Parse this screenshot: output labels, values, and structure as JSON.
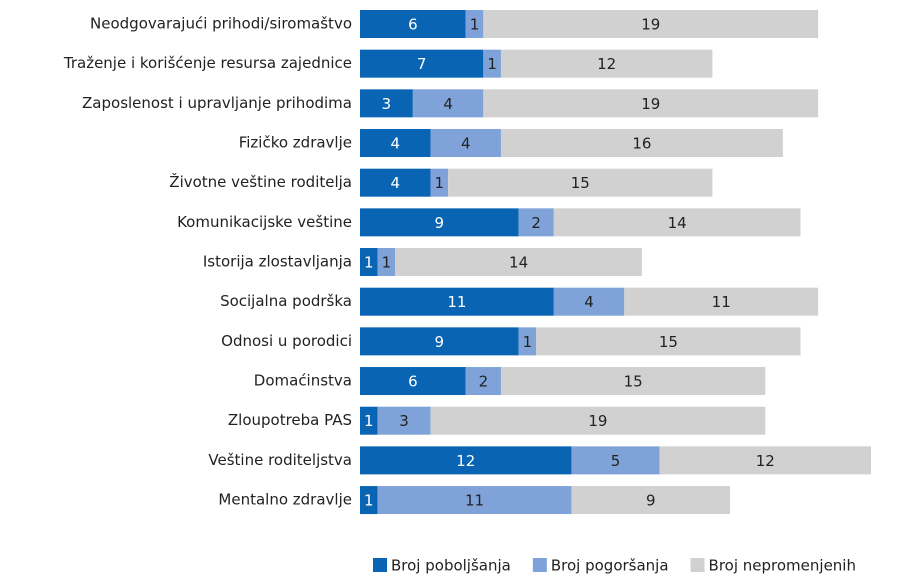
{
  "chart_data": {
    "type": "stacked_bar_horizontal",
    "categories": [
      "Neodgovarajući prihodi/siromaštvo",
      "Traženje i korišćenje resursa zajednice",
      "Zaposlenost i upravljanje prihodima",
      "Fizičko zdravlje",
      "Životne veštine roditelja",
      "Komunikacijske veštine",
      "Istorija zlostavljanja",
      "Socijalna podrška",
      "Odnosi u porodici",
      "Domaćinstva",
      "Zloupotreba PAS",
      "Veštine roditeljstva",
      "Mentalno zdravlje"
    ],
    "series": [
      {
        "name": "Broj poboljšanja",
        "color": "#0a64b4",
        "values": [
          6,
          7,
          3,
          4,
          4,
          9,
          1,
          11,
          9,
          6,
          1,
          12,
          1
        ]
      },
      {
        "name": "Broj pogoršanja",
        "color": "#7fa3d9",
        "values": [
          1,
          1,
          4,
          4,
          1,
          2,
          1,
          4,
          1,
          2,
          3,
          5,
          11
        ]
      },
      {
        "name": "Broj nepromenjenih",
        "color": "#d1d1d1",
        "values": [
          19,
          12,
          19,
          16,
          15,
          14,
          14,
          11,
          15,
          15,
          19,
          12,
          9
        ]
      }
    ],
    "legend": "bottom"
  }
}
